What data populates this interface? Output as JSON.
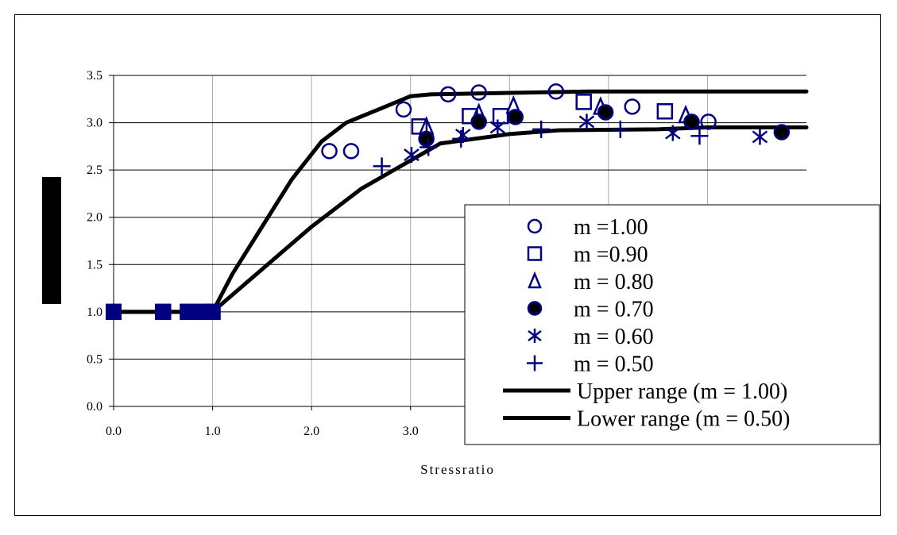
{
  "chart_data": {
    "type": "scatter",
    "title": "",
    "xlabel": "Stressratio",
    "ylabel": "",
    "xlim": [
      0,
      7
    ],
    "ylim": [
      0,
      3.5
    ],
    "x_tick_labels": [
      "0.0",
      "1.0",
      "2.0",
      "3.0"
    ],
    "y_tick_labels": [
      "0.0",
      "0.5",
      "1.0",
      "1.5",
      "2.0",
      "2.5",
      "3.0",
      "3.5"
    ],
    "grid": {
      "horizontal": true,
      "vertical": true
    },
    "legend_position": "bottom-right",
    "marker_color": "#000080",
    "series": [
      {
        "name": "m =1.00",
        "marker": "circle-open",
        "points": [
          [
            0,
            1
          ],
          [
            0.5,
            1
          ],
          [
            0.75,
            1
          ],
          [
            0.9,
            1
          ],
          [
            1.0,
            1
          ],
          [
            2.18,
            2.7
          ],
          [
            2.4,
            2.7
          ],
          [
            2.93,
            3.14
          ],
          [
            3.38,
            3.3
          ],
          [
            3.69,
            3.32
          ],
          [
            4.47,
            3.33
          ],
          [
            5.24,
            3.17
          ],
          [
            6.01,
            3.01
          ]
        ]
      },
      {
        "name": "m =0.90",
        "marker": "square-open",
        "points": [
          [
            0,
            1
          ],
          [
            0.5,
            1
          ],
          [
            0.75,
            1
          ],
          [
            0.9,
            1
          ],
          [
            1.0,
            1
          ],
          [
            3.09,
            2.96
          ],
          [
            3.6,
            3.07
          ],
          [
            3.91,
            3.07
          ],
          [
            4.75,
            3.22
          ],
          [
            5.57,
            3.12
          ]
        ]
      },
      {
        "name": "m = 0.80",
        "marker": "triangle-open",
        "points": [
          [
            0,
            1
          ],
          [
            0.5,
            1
          ],
          [
            0.75,
            1
          ],
          [
            0.9,
            1
          ],
          [
            1.0,
            1
          ],
          [
            3.16,
            2.96
          ],
          [
            3.69,
            3.1
          ],
          [
            4.04,
            3.18
          ],
          [
            4.92,
            3.17
          ],
          [
            5.78,
            3.08
          ]
        ]
      },
      {
        "name": "m = 0.70",
        "marker": "circle-filled",
        "points": [
          [
            0,
            1
          ],
          [
            0.5,
            1
          ],
          [
            0.75,
            1
          ],
          [
            0.9,
            1
          ],
          [
            1.0,
            1
          ],
          [
            3.16,
            2.83
          ],
          [
            3.69,
            3.01
          ],
          [
            4.06,
            3.06
          ],
          [
            4.97,
            3.11
          ],
          [
            5.84,
            3.01
          ],
          [
            6.75,
            2.9
          ]
        ]
      },
      {
        "name": "m = 0.60",
        "marker": "asterisk",
        "points": [
          [
            0,
            1
          ],
          [
            0.5,
            1
          ],
          [
            0.75,
            1
          ],
          [
            0.9,
            1
          ],
          [
            1.0,
            1
          ],
          [
            3.01,
            2.66
          ],
          [
            3.53,
            2.87
          ],
          [
            3.88,
            2.95
          ],
          [
            4.78,
            3.01
          ],
          [
            5.65,
            2.89
          ],
          [
            6.53,
            2.85
          ]
        ]
      },
      {
        "name": "m = 0.50",
        "marker": "plus",
        "points": [
          [
            0,
            1
          ],
          [
            0.5,
            1
          ],
          [
            0.75,
            1
          ],
          [
            0.9,
            1
          ],
          [
            1.0,
            1
          ],
          [
            2.71,
            2.54
          ],
          [
            3.18,
            2.74
          ],
          [
            3.51,
            2.83
          ],
          [
            4.32,
            2.93
          ],
          [
            5.12,
            2.93
          ],
          [
            5.92,
            2.86
          ]
        ]
      },
      {
        "name": "Upper range (m = 1.00)",
        "marker": "line",
        "points": [
          [
            0,
            1
          ],
          [
            1.0,
            1
          ],
          [
            1.2,
            1.4
          ],
          [
            1.5,
            1.9
          ],
          [
            1.8,
            2.4
          ],
          [
            2.1,
            2.8
          ],
          [
            2.35,
            3.0
          ],
          [
            2.7,
            3.15
          ],
          [
            3.0,
            3.28
          ],
          [
            3.2,
            3.3
          ],
          [
            4.8,
            3.33
          ],
          [
            7.0,
            3.33
          ]
        ]
      },
      {
        "name": "Lower range (m = 0.50)",
        "marker": "line",
        "points": [
          [
            0,
            1
          ],
          [
            1.0,
            1
          ],
          [
            1.5,
            1.45
          ],
          [
            2.0,
            1.9
          ],
          [
            2.5,
            2.3
          ],
          [
            3.0,
            2.6
          ],
          [
            3.3,
            2.78
          ],
          [
            4.0,
            2.88
          ],
          [
            4.5,
            2.92
          ],
          [
            5.5,
            2.93
          ],
          [
            6.0,
            2.95
          ],
          [
            7.0,
            2.95
          ]
        ]
      }
    ]
  }
}
